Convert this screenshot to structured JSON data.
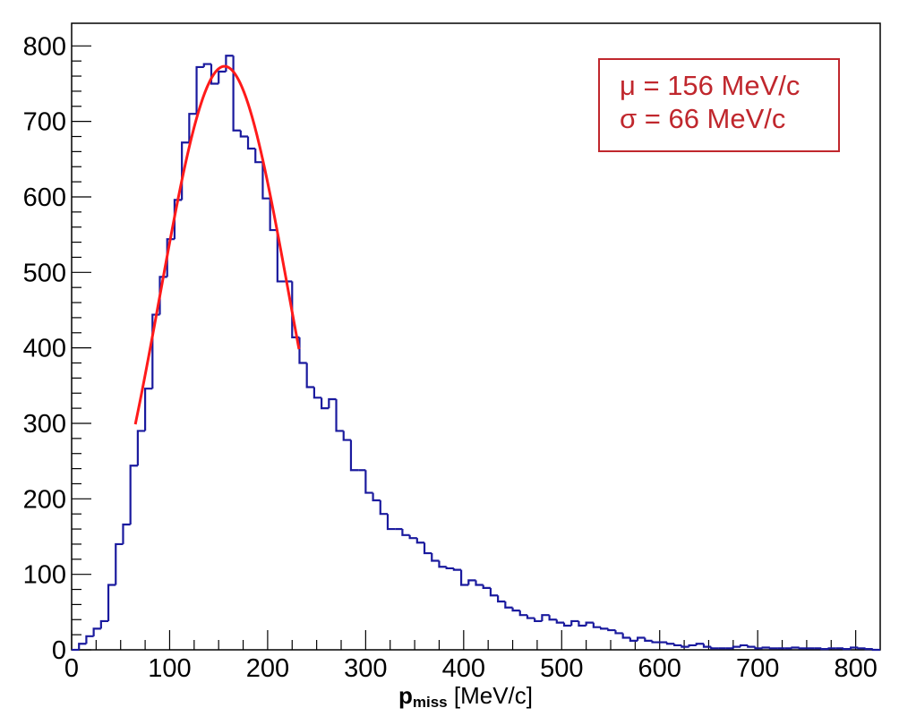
{
  "chart_data": {
    "type": "histogram",
    "x_ticks": [
      "0",
      "100",
      "200",
      "300",
      "400",
      "500",
      "600",
      "700",
      "800"
    ],
    "y_ticks": [
      "0",
      "100",
      "200",
      "300",
      "400",
      "500",
      "600",
      "700",
      "800"
    ],
    "xlim": [
      0,
      825
    ],
    "ylim": [
      0,
      830
    ],
    "xlabel_main": "p",
    "xlabel_sub": "miss",
    "xlabel_unit": " [MeV/c]",
    "bin_width": 7.5,
    "bin_start": 0,
    "values": [
      0,
      8,
      18,
      28,
      38,
      86,
      140,
      166,
      244,
      290,
      346,
      444,
      494,
      544,
      596,
      672,
      710,
      772,
      776,
      750,
      766,
      787,
      688,
      680,
      664,
      646,
      598,
      556,
      488,
      488,
      414,
      380,
      348,
      334,
      320,
      332,
      290,
      278,
      238,
      238,
      208,
      198,
      180,
      160,
      160,
      152,
      148,
      142,
      128,
      118,
      110,
      108,
      106,
      86,
      92,
      86,
      82,
      72,
      64,
      56,
      52,
      46,
      42,
      38,
      46,
      40,
      36,
      32,
      38,
      32,
      36,
      30,
      28,
      26,
      22,
      16,
      12,
      16,
      12,
      10,
      10,
      8,
      6,
      4,
      6,
      8,
      4,
      2,
      2,
      2,
      4,
      6,
      4,
      2,
      3,
      2,
      2,
      2,
      3,
      2,
      2,
      2,
      1,
      2,
      2,
      1,
      3,
      2,
      1,
      0
    ],
    "series": [
      {
        "color": "#1a1a9e"
      }
    ],
    "fit": {
      "type": "gaussian",
      "color": "#ff1a1a",
      "mu": 156,
      "sigma": 66,
      "amplitude": 773,
      "x_range": [
        65,
        232
      ]
    },
    "legend": {
      "position": "top-right",
      "lines": [
        "μ = 156 MeV/c",
        "σ = 66 MeV/c"
      ],
      "color": "#c0272d"
    }
  }
}
